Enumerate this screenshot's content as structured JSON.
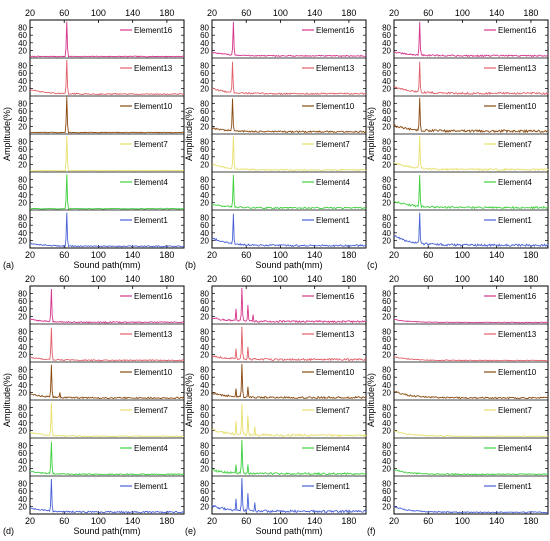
{
  "figure": {
    "y_axis_label": "Amplitude(%)",
    "x_axis_label": "Sound path(mm)"
  },
  "colors": {
    "Element16": "#d6368c",
    "Element13": "#e2606a",
    "Element10": "#8a4a10",
    "Element7": "#e8e070",
    "Element4": "#3fd03f",
    "Element1": "#4a62d8",
    "axis": "#000000"
  },
  "chart_data": [
    {
      "type": "line",
      "panel_label": "(a)",
      "x_range": [
        20,
        200
      ],
      "ylim": [
        0,
        100
      ],
      "x_ticks": [
        20,
        60,
        100,
        140,
        180
      ],
      "y_ticks": [
        20,
        40,
        60,
        80
      ],
      "xlabel": "Sound path(mm)",
      "ylabel": "Amplitude(%)",
      "legend_position": "right",
      "series": [
        {
          "name": "Element16",
          "baseline": 6,
          "noise": 2,
          "decay": 0,
          "spikes": [
            [
              63,
              96
            ]
          ]
        },
        {
          "name": "Element13",
          "baseline": 7,
          "noise": 3,
          "decay": 12,
          "spikes": [
            [
              63,
              95
            ]
          ]
        },
        {
          "name": "Element10",
          "baseline": 6,
          "noise": 2,
          "decay": 0,
          "spikes": [
            [
              63,
              98
            ]
          ]
        },
        {
          "name": "Element7",
          "baseline": 5,
          "noise": 2,
          "decay": 0,
          "spikes": [
            [
              63,
              95
            ]
          ]
        },
        {
          "name": "Element4",
          "baseline": 5,
          "noise": 2,
          "decay": 0,
          "spikes": [
            [
              63,
              94
            ]
          ]
        },
        {
          "name": "Element1",
          "baseline": 6,
          "noise": 3,
          "decay": 8,
          "spikes": [
            [
              63,
              93
            ]
          ]
        }
      ]
    },
    {
      "type": "line",
      "panel_label": "(b)",
      "x_range": [
        20,
        200
      ],
      "ylim": [
        0,
        100
      ],
      "x_ticks": [
        20,
        60,
        100,
        140,
        180
      ],
      "y_ticks": [
        20,
        40,
        60,
        80
      ],
      "xlabel": "Sound path(mm)",
      "ylabel": "Amplitude(%)",
      "legend_position": "right",
      "series": [
        {
          "name": "Element16",
          "baseline": 8,
          "noise": 3,
          "decay": 10,
          "spikes": [
            [
              45,
              95
            ]
          ]
        },
        {
          "name": "Element13",
          "baseline": 8,
          "noise": 4,
          "decay": 14,
          "spikes": [
            [
              44,
              90
            ]
          ]
        },
        {
          "name": "Element10",
          "baseline": 8,
          "noise": 4,
          "decay": 10,
          "spikes": [
            [
              44,
              93
            ]
          ]
        },
        {
          "name": "Element7",
          "baseline": 7,
          "noise": 4,
          "decay": 15,
          "spikes": [
            [
              45,
              95
            ]
          ]
        },
        {
          "name": "Element4",
          "baseline": 7,
          "noise": 4,
          "decay": 10,
          "spikes": [
            [
              45,
              92
            ]
          ]
        },
        {
          "name": "Element1",
          "baseline": 8,
          "noise": 5,
          "decay": 20,
          "spikes": [
            [
              45,
              90
            ]
          ]
        }
      ]
    },
    {
      "type": "line",
      "panel_label": "(c)",
      "x_range": [
        20,
        200
      ],
      "ylim": [
        0,
        100
      ],
      "x_ticks": [
        20,
        60,
        100,
        140,
        180
      ],
      "y_ticks": [
        20,
        40,
        60,
        80
      ],
      "xlabel": "",
      "ylabel": "Amplitude(%)",
      "legend_position": "right",
      "series": [
        {
          "name": "Element16",
          "baseline": 8,
          "noise": 4,
          "decay": 10,
          "spikes": [
            [
              50,
              95
            ]
          ]
        },
        {
          "name": "Element13",
          "baseline": 9,
          "noise": 5,
          "decay": 18,
          "spikes": [
            [
              50,
              90
            ]
          ]
        },
        {
          "name": "Element10",
          "baseline": 9,
          "noise": 6,
          "decay": 15,
          "spikes": [
            [
              50,
              95
            ]
          ]
        },
        {
          "name": "Element7",
          "baseline": 8,
          "noise": 5,
          "decay": 20,
          "spikes": [
            [
              50,
              95
            ]
          ]
        },
        {
          "name": "Element4",
          "baseline": 8,
          "noise": 5,
          "decay": 18,
          "spikes": [
            [
              50,
              92
            ]
          ]
        },
        {
          "name": "Element1",
          "baseline": 9,
          "noise": 6,
          "decay": 25,
          "spikes": [
            [
              50,
              93
            ]
          ]
        }
      ]
    },
    {
      "type": "line",
      "panel_label": "(d)",
      "x_range": [
        20,
        200
      ],
      "ylim": [
        0,
        100
      ],
      "x_ticks": [
        20,
        60,
        100,
        140,
        180
      ],
      "y_ticks": [
        20,
        40,
        60,
        80
      ],
      "xlabel": "Sound path(mm)",
      "ylabel": "Amplitude(%)",
      "legend_position": "right",
      "series": [
        {
          "name": "Element16",
          "baseline": 6,
          "noise": 3,
          "decay": 8,
          "spikes": [
            [
              45,
              92
            ]
          ]
        },
        {
          "name": "Element13",
          "baseline": 6,
          "noise": 3,
          "decay": 8,
          "spikes": [
            [
              45,
              90
            ]
          ]
        },
        {
          "name": "Element10",
          "baseline": 7,
          "noise": 4,
          "decay": 10,
          "spikes": [
            [
              45,
              93
            ],
            [
              55,
              20
            ]
          ]
        },
        {
          "name": "Element7",
          "baseline": 6,
          "noise": 3,
          "decay": 10,
          "spikes": [
            [
              45,
              92
            ]
          ]
        },
        {
          "name": "Element4",
          "baseline": 6,
          "noise": 3,
          "decay": 8,
          "spikes": [
            [
              45,
              90
            ]
          ]
        },
        {
          "name": "Element1",
          "baseline": 6,
          "noise": 4,
          "decay": 12,
          "spikes": [
            [
              45,
              92
            ]
          ]
        }
      ]
    },
    {
      "type": "line",
      "panel_label": "(e)",
      "x_range": [
        20,
        200
      ],
      "ylim": [
        0,
        100
      ],
      "x_ticks": [
        20,
        60,
        100,
        140,
        180
      ],
      "y_ticks": [
        20,
        40,
        60,
        80
      ],
      "xlabel": "Sound path(mm)",
      "ylabel": "Amplitude(%)",
      "legend_position": "right",
      "series": [
        {
          "name": "Element16",
          "baseline": 8,
          "noise": 5,
          "decay": 10,
          "spikes": [
            [
              48,
              40
            ],
            [
              55,
              95
            ],
            [
              62,
              50
            ],
            [
              68,
              25
            ]
          ]
        },
        {
          "name": "Element13",
          "baseline": 8,
          "noise": 5,
          "decay": 10,
          "spikes": [
            [
              48,
              35
            ],
            [
              55,
              93
            ],
            [
              62,
              40
            ]
          ]
        },
        {
          "name": "Element10",
          "baseline": 8,
          "noise": 5,
          "decay": 12,
          "spikes": [
            [
              48,
              30
            ],
            [
              55,
              95
            ],
            [
              62,
              35
            ]
          ]
        },
        {
          "name": "Element7",
          "baseline": 8,
          "noise": 6,
          "decay": 15,
          "spikes": [
            [
              48,
              45
            ],
            [
              55,
              90
            ],
            [
              62,
              60
            ],
            [
              70,
              30
            ]
          ]
        },
        {
          "name": "Element4",
          "baseline": 7,
          "noise": 5,
          "decay": 10,
          "spikes": [
            [
              48,
              30
            ],
            [
              55,
              95
            ],
            [
              62,
              30
            ]
          ]
        },
        {
          "name": "Element1",
          "baseline": 8,
          "noise": 6,
          "decay": 15,
          "spikes": [
            [
              48,
              40
            ],
            [
              55,
              95
            ],
            [
              62,
              55
            ],
            [
              70,
              30
            ]
          ]
        }
      ]
    },
    {
      "type": "line",
      "panel_label": "(f)",
      "x_range": [
        20,
        200
      ],
      "ylim": [
        0,
        100
      ],
      "x_ticks": [
        20,
        60,
        100,
        140,
        180
      ],
      "y_ticks": [
        20,
        40,
        60,
        80
      ],
      "xlabel": "",
      "ylabel": "Amplitude(%)",
      "legend_position": "right",
      "series": [
        {
          "name": "Element16",
          "baseline": 6,
          "noise": 2,
          "decay": 8,
          "spikes": []
        },
        {
          "name": "Element13",
          "baseline": 6,
          "noise": 2,
          "decay": 10,
          "spikes": []
        },
        {
          "name": "Element10",
          "baseline": 7,
          "noise": 4,
          "decay": 18,
          "spikes": []
        },
        {
          "name": "Element7",
          "baseline": 6,
          "noise": 3,
          "decay": 15,
          "spikes": []
        },
        {
          "name": "Element4",
          "baseline": 6,
          "noise": 3,
          "decay": 12,
          "spikes": []
        },
        {
          "name": "Element1",
          "baseline": 6,
          "noise": 3,
          "decay": 15,
          "spikes": []
        }
      ]
    }
  ]
}
